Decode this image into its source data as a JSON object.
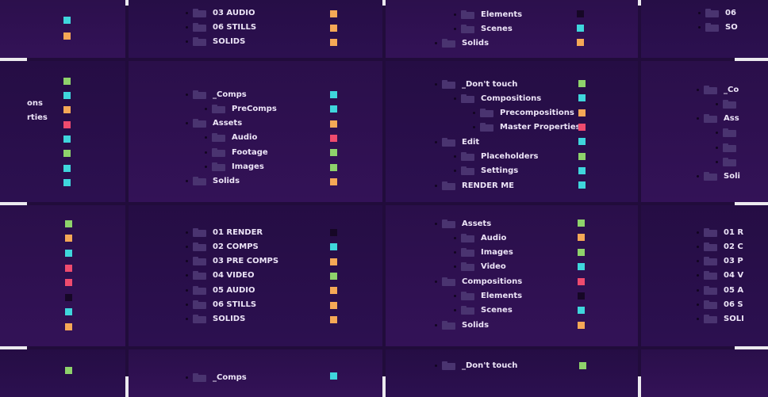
{
  "colors": {
    "green": "#8ed26b",
    "cyan": "#3fd6dc",
    "orange": "#f5a856",
    "red": "#ef4b6e",
    "dark": "#160726",
    "folder": "#4a3470"
  },
  "panels": [
    {
      "id": "p-top-left",
      "items": [],
      "swatches": [
        "cyan",
        "orange"
      ]
    },
    {
      "id": "p-top-center-left",
      "items": [
        {
          "label": "03 AUDIO",
          "depth": 0
        },
        {
          "label": "06 STILLS",
          "depth": 0
        },
        {
          "label": "SOLIDS",
          "depth": 0
        }
      ],
      "swatches": [
        "orange",
        "orange",
        "orange"
      ]
    },
    {
      "id": "p-top-center-right",
      "items": [
        {
          "label": "Elements",
          "depth": 1
        },
        {
          "label": "Scenes",
          "depth": 1
        },
        {
          "label": "Solids",
          "depth": 0
        }
      ],
      "swatches": [
        "dark",
        "cyan",
        "orange"
      ]
    },
    {
      "id": "p-top-right",
      "items": [
        {
          "label": "06",
          "depth": 0
        },
        {
          "label": "SO",
          "depth": 0
        }
      ],
      "swatches": []
    },
    {
      "id": "p-mid-left",
      "items": [
        {
          "label": "ons",
          "depth": 0
        },
        {
          "label": "rties",
          "depth": 0
        }
      ],
      "swatches": [
        "green",
        "cyan",
        "orange",
        "red",
        "cyan",
        "green",
        "cyan",
        "cyan"
      ]
    },
    {
      "id": "p-mid-center-left",
      "items": [
        {
          "label": "_Comps",
          "depth": 0
        },
        {
          "label": "PreComps",
          "depth": 1
        },
        {
          "label": "Assets",
          "depth": 0
        },
        {
          "label": "Audio",
          "depth": 1
        },
        {
          "label": "Footage",
          "depth": 1
        },
        {
          "label": "Images",
          "depth": 1
        },
        {
          "label": "Solids",
          "depth": 0
        }
      ],
      "swatches": [
        "cyan",
        "cyan",
        "orange",
        "red",
        "green",
        "green",
        "orange"
      ]
    },
    {
      "id": "p-mid-center-right",
      "items": [
        {
          "label": "_Don't touch",
          "depth": 0
        },
        {
          "label": "Compositions",
          "depth": 1
        },
        {
          "label": "Precompositions",
          "depth": 2
        },
        {
          "label": "Master Properties",
          "depth": 2
        },
        {
          "label": "Edit",
          "depth": 0
        },
        {
          "label": "Placeholders",
          "depth": 1
        },
        {
          "label": "Settings",
          "depth": 1
        },
        {
          "label": "RENDER ME",
          "depth": 0
        }
      ],
      "swatches": [
        "green",
        "cyan",
        "orange",
        "red",
        "cyan",
        "green",
        "cyan",
        "cyan"
      ]
    },
    {
      "id": "p-mid-right",
      "items": [
        {
          "label": "_Co",
          "depth": 0
        },
        {
          "label": "",
          "depth": 1
        },
        {
          "label": "Ass",
          "depth": 0
        },
        {
          "label": "",
          "depth": 1
        },
        {
          "label": "",
          "depth": 1
        },
        {
          "label": "",
          "depth": 1
        },
        {
          "label": "Soli",
          "depth": 0
        }
      ],
      "swatches": []
    },
    {
      "id": "p-bot-left",
      "items": [],
      "swatches": [
        "green",
        "orange",
        "cyan",
        "red",
        "red",
        "dark",
        "cyan",
        "orange"
      ]
    },
    {
      "id": "p-bot-center-left",
      "items": [
        {
          "label": "01 RENDER",
          "depth": 0
        },
        {
          "label": "02 COMPS",
          "depth": 0
        },
        {
          "label": "03 PRE COMPS",
          "depth": 0
        },
        {
          "label": "04 VIDEO",
          "depth": 0
        },
        {
          "label": "05 AUDIO",
          "depth": 0
        },
        {
          "label": "06 STILLS",
          "depth": 0
        },
        {
          "label": "SOLIDS",
          "depth": 0
        }
      ],
      "swatches": [
        "dark",
        "cyan",
        "orange",
        "green",
        "orange",
        "orange",
        "orange"
      ]
    },
    {
      "id": "p-bot-center-right",
      "items": [
        {
          "label": "Assets",
          "depth": 0
        },
        {
          "label": "Audio",
          "depth": 1
        },
        {
          "label": "Images",
          "depth": 1
        },
        {
          "label": "Video",
          "depth": 1
        },
        {
          "label": "Compositions",
          "depth": 0
        },
        {
          "label": "Elements",
          "depth": 1
        },
        {
          "label": "Scenes",
          "depth": 1
        },
        {
          "label": "Solids",
          "depth": 0
        }
      ],
      "swatches": [
        "green",
        "orange",
        "green",
        "cyan",
        "red",
        "dark",
        "cyan",
        "orange"
      ]
    },
    {
      "id": "p-bot-right",
      "items": [
        {
          "label": "01 R",
          "depth": 0
        },
        {
          "label": "02 C",
          "depth": 0
        },
        {
          "label": "03 P",
          "depth": 0
        },
        {
          "label": "04 V",
          "depth": 0
        },
        {
          "label": "05 A",
          "depth": 0
        },
        {
          "label": "06 S",
          "depth": 0
        },
        {
          "label": "SOLI",
          "depth": 0
        }
      ],
      "swatches": []
    },
    {
      "id": "p-last-left",
      "items": [],
      "swatches": [
        "green"
      ]
    },
    {
      "id": "p-last-center-left",
      "items": [
        {
          "label": "_Comps",
          "depth": 0
        }
      ],
      "swatches": [
        "cyan"
      ]
    },
    {
      "id": "p-last-center-right",
      "items": [
        {
          "label": "_Don't touch",
          "depth": 0
        }
      ],
      "swatches": [
        "green"
      ]
    },
    {
      "id": "p-last-right",
      "items": [],
      "swatches": []
    }
  ]
}
